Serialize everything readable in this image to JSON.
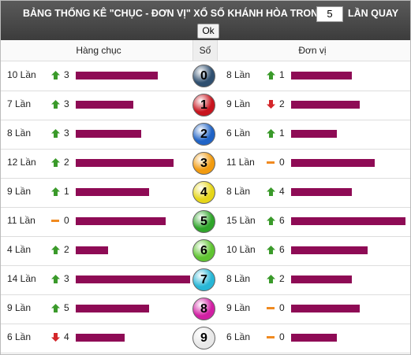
{
  "header": {
    "title": "BẢNG THỐNG KÊ \"CHỤC - ĐƠN VỊ\" XỔ SỐ KHÁNH HÒA TRONG",
    "input_value": "5",
    "suffix": "LẦN QUAY",
    "button": "Ok"
  },
  "table": {
    "columns": [
      "Hàng chục",
      "Số",
      "Đơn vị"
    ],
    "bar_color": "#8e0b55",
    "rows": [
      {
        "digit": "0",
        "ball_color": "#2f4f6f",
        "tens": {
          "label": "10 Lần",
          "count": 10,
          "trend": "up",
          "change": 3
        },
        "units": {
          "label": "8 Lần",
          "count": 8,
          "trend": "up",
          "change": 1
        }
      },
      {
        "digit": "1",
        "ball_color": "#c8141e",
        "tens": {
          "label": "7 Lần",
          "count": 7,
          "trend": "up",
          "change": 3
        },
        "units": {
          "label": "9 Lần",
          "count": 9,
          "trend": "down",
          "change": 2
        }
      },
      {
        "digit": "2",
        "ball_color": "#1f63c6",
        "tens": {
          "label": "8 Lần",
          "count": 8,
          "trend": "up",
          "change": 3
        },
        "units": {
          "label": "6 Lần",
          "count": 6,
          "trend": "up",
          "change": 1
        }
      },
      {
        "digit": "3",
        "ball_color": "#f29b0f",
        "tens": {
          "label": "12 Lần",
          "count": 12,
          "trend": "up",
          "change": 2
        },
        "units": {
          "label": "11 Lần",
          "count": 11,
          "trend": "flat",
          "change": 0
        }
      },
      {
        "digit": "4",
        "ball_color": "#e6d619",
        "tens": {
          "label": "9 Lần",
          "count": 9,
          "trend": "up",
          "change": 1
        },
        "units": {
          "label": "8 Lần",
          "count": 8,
          "trend": "up",
          "change": 4
        }
      },
      {
        "digit": "5",
        "ball_color": "#2fa52a",
        "tens": {
          "label": "11 Lần",
          "count": 11,
          "trend": "flat",
          "change": 0
        },
        "units": {
          "label": "15 Lần",
          "count": 15,
          "trend": "up",
          "change": 6
        }
      },
      {
        "digit": "6",
        "ball_color": "#5fc431",
        "tens": {
          "label": "4 Lần",
          "count": 4,
          "trend": "up",
          "change": 2
        },
        "units": {
          "label": "10 Lần",
          "count": 10,
          "trend": "up",
          "change": 6
        }
      },
      {
        "digit": "7",
        "ball_color": "#27b6d6",
        "tens": {
          "label": "14 Lần",
          "count": 14,
          "trend": "up",
          "change": 3
        },
        "units": {
          "label": "8 Lần",
          "count": 8,
          "trend": "up",
          "change": 2
        }
      },
      {
        "digit": "8",
        "ball_color": "#d11fa3",
        "tens": {
          "label": "9 Lần",
          "count": 9,
          "trend": "up",
          "change": 5
        },
        "units": {
          "label": "9 Lần",
          "count": 9,
          "trend": "flat",
          "change": 0
        }
      },
      {
        "digit": "9",
        "ball_color": "#e8e8e8",
        "tens": {
          "label": "6 Lần",
          "count": 6,
          "trend": "down",
          "change": 4
        },
        "units": {
          "label": "6 Lần",
          "count": 6,
          "trend": "flat",
          "change": 0
        }
      }
    ]
  }
}
